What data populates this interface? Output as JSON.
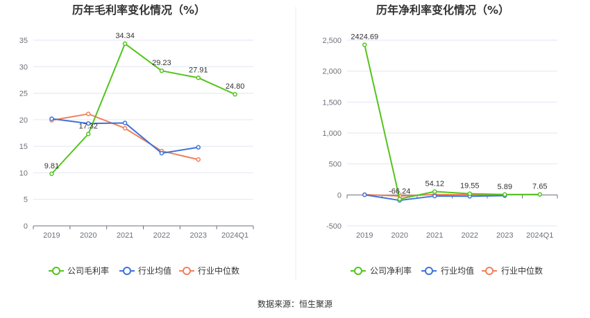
{
  "source": "数据来源：恒生聚源",
  "colors": {
    "company": "#52c41a",
    "industry_avg": "#3d73d8",
    "industry_median": "#f0805a"
  },
  "chart_data": [
    {
      "type": "line",
      "title": "历年毛利率变化情况（%）",
      "categories": [
        "2019",
        "2020",
        "2021",
        "2022",
        "2023",
        "2024Q1"
      ],
      "ylim": [
        0,
        35
      ],
      "yticks": [
        0,
        5,
        10,
        15,
        20,
        25,
        30,
        35
      ],
      "ytick_labels": [
        "0",
        "5",
        "10",
        "15",
        "20",
        "25",
        "30",
        "35"
      ],
      "grid": true,
      "legend_position": "bottom",
      "series": [
        {
          "name": "公司毛利率",
          "color_key": "company",
          "values": [
            9.81,
            17.32,
            34.34,
            29.23,
            27.91,
            24.8
          ],
          "labels": [
            "9.81",
            "17.32",
            "34.34",
            "29.23",
            "27.91",
            "24.80"
          ]
        },
        {
          "name": "行业均值",
          "color_key": "industry_avg",
          "values": [
            20.2,
            19.3,
            19.4,
            13.7,
            14.8,
            null
          ]
        },
        {
          "name": "行业中位数",
          "color_key": "industry_median",
          "values": [
            19.9,
            21.1,
            18.4,
            14.1,
            12.5,
            null
          ]
        }
      ]
    },
    {
      "type": "line",
      "title": "历年净利率变化情况（%）",
      "categories": [
        "2019",
        "2020",
        "2021",
        "2022",
        "2023",
        "2024Q1"
      ],
      "ylim": [
        -500,
        2500
      ],
      "yticks": [
        -500,
        0,
        500,
        1000,
        1500,
        2000,
        2500
      ],
      "ytick_labels": [
        "-500",
        "0",
        "500",
        "1,000",
        "1,500",
        "2,000",
        "2,500"
      ],
      "grid": true,
      "legend_position": "bottom",
      "series": [
        {
          "name": "公司净利率",
          "color_key": "company",
          "values": [
            2424.69,
            -66.24,
            54.12,
            19.55,
            5.89,
            7.65
          ],
          "labels": [
            "2424.69",
            "-66.24",
            "54.12",
            "19.55",
            "5.89",
            "7.65"
          ]
        },
        {
          "name": "行业均值",
          "color_key": "industry_avg",
          "values": [
            2,
            -88,
            -18,
            -22,
            -12,
            null
          ]
        },
        {
          "name": "行业中位数",
          "color_key": "industry_median",
          "values": [
            5,
            -18,
            6,
            4,
            2,
            null
          ]
        }
      ]
    }
  ]
}
